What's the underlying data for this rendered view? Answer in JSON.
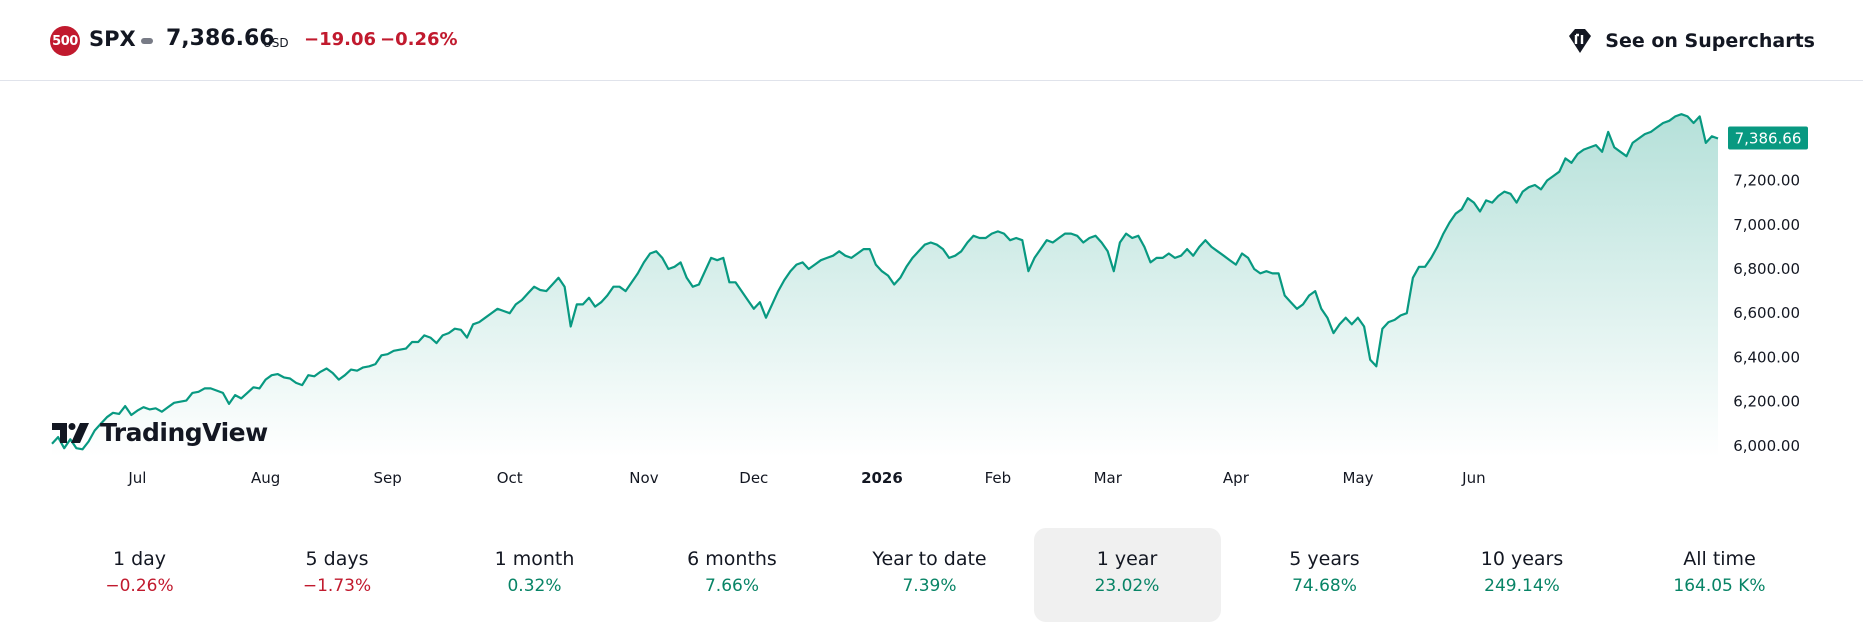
{
  "header": {
    "badge_text": "500",
    "ticker": "SPX",
    "price": "7,386.66",
    "currency": "USD",
    "change": "−19.06",
    "change_pct": "−0.26%",
    "supercharts_label": "See on Supercharts",
    "negative_color": "#c11a2e"
  },
  "logo": {
    "name": "TradingView"
  },
  "chart_data": {
    "type": "area",
    "title": "",
    "xlabel": "",
    "ylabel": "",
    "line_color": "#089981",
    "last_value_label": "7,386.66",
    "ylim": [
      5950,
      7650
    ],
    "y_ticks": [
      6000,
      6200,
      6400,
      6600,
      6800,
      7000,
      7200
    ],
    "y_tick_labels": [
      "6,000.00",
      "6,200.00",
      "6,400.00",
      "6,600.00",
      "6,800.00",
      "7,000.00",
      "7,200.00"
    ],
    "x_labels": [
      "Jul",
      "Aug",
      "Sep",
      "Oct",
      "Nov",
      "Dec",
      "2026",
      "Feb",
      "Mar",
      "Apr",
      "May",
      "Jun"
    ],
    "x_label_bold": [
      false,
      false,
      false,
      false,
      false,
      false,
      true,
      false,
      false,
      false,
      false,
      false
    ],
    "x_label_index": [
      14,
      35,
      55,
      75,
      97,
      115,
      136,
      155,
      173,
      194,
      214,
      233
    ],
    "series": [
      {
        "values": [
          6010,
          6040,
          5990,
          6030,
          5990,
          5985,
          6020,
          6070,
          6100,
          6130,
          6150,
          6145,
          6180,
          6140,
          6160,
          6175,
          6165,
          6170,
          6155,
          6175,
          6195,
          6200,
          6205,
          6240,
          6245,
          6260,
          6260,
          6250,
          6240,
          6190,
          6230,
          6215,
          6240,
          6265,
          6260,
          6300,
          6320,
          6325,
          6310,
          6305,
          6285,
          6275,
          6320,
          6315,
          6335,
          6350,
          6330,
          6300,
          6320,
          6345,
          6340,
          6355,
          6360,
          6370,
          6410,
          6415,
          6430,
          6435,
          6440,
          6470,
          6470,
          6500,
          6490,
          6465,
          6500,
          6510,
          6530,
          6525,
          6490,
          6550,
          6560,
          6580,
          6600,
          6620,
          6610,
          6600,
          6640,
          6660,
          6690,
          6720,
          6705,
          6700,
          6730,
          6760,
          6720,
          6540,
          6640,
          6640,
          6670,
          6630,
          6650,
          6680,
          6720,
          6720,
          6700,
          6740,
          6780,
          6830,
          6870,
          6880,
          6850,
          6800,
          6810,
          6830,
          6760,
          6720,
          6730,
          6790,
          6850,
          6840,
          6850,
          6740,
          6740,
          6700,
          6660,
          6620,
          6650,
          6580,
          6640,
          6700,
          6750,
          6790,
          6820,
          6830,
          6800,
          6820,
          6840,
          6850,
          6860,
          6880,
          6860,
          6850,
          6870,
          6890,
          6890,
          6820,
          6790,
          6770,
          6730,
          6760,
          6810,
          6850,
          6880,
          6910,
          6920,
          6910,
          6890,
          6850,
          6860,
          6880,
          6920,
          6950,
          6940,
          6940,
          6960,
          6970,
          6960,
          6930,
          6940,
          6930,
          6790,
          6850,
          6890,
          6930,
          6920,
          6940,
          6960,
          6960,
          6950,
          6920,
          6940,
          6950,
          6920,
          6880,
          6790,
          6920,
          6960,
          6940,
          6950,
          6900,
          6830,
          6850,
          6850,
          6870,
          6850,
          6860,
          6890,
          6860,
          6900,
          6930,
          6900,
          6880,
          6860,
          6840,
          6820,
          6870,
          6850,
          6800,
          6780,
          6790,
          6780,
          6780,
          6680,
          6650,
          6620,
          6640,
          6680,
          6700,
          6620,
          6580,
          6510,
          6550,
          6580,
          6550,
          6580,
          6540,
          6390,
          6360,
          6530,
          6560,
          6570,
          6590,
          6600,
          6760,
          6810,
          6810,
          6850,
          6900,
          6960,
          7010,
          7050,
          7070,
          7120,
          7100,
          7060,
          7110,
          7100,
          7130,
          7150,
          7140,
          7100,
          7150,
          7170,
          7180,
          7160,
          7200,
          7220,
          7240,
          7300,
          7280,
          7320,
          7340,
          7350,
          7360,
          7330,
          7420,
          7350,
          7330,
          7310,
          7370,
          7390,
          7410,
          7420,
          7440,
          7460,
          7470,
          7490,
          7500,
          7490,
          7460,
          7490,
          7370,
          7400,
          7390
        ]
      }
    ]
  },
  "periods": [
    {
      "label": "1 day",
      "value": "−0.26%",
      "trend": "neg",
      "active": false
    },
    {
      "label": "5 days",
      "value": "−1.73%",
      "trend": "neg",
      "active": false
    },
    {
      "label": "1 month",
      "value": "0.32%",
      "trend": "pos",
      "active": false
    },
    {
      "label": "6 months",
      "value": "7.66%",
      "trend": "pos",
      "active": false
    },
    {
      "label": "Year to date",
      "value": "7.39%",
      "trend": "pos",
      "active": false
    },
    {
      "label": "1 year",
      "value": "23.02%",
      "trend": "pos",
      "active": true
    },
    {
      "label": "5 years",
      "value": "74.68%",
      "trend": "pos",
      "active": false
    },
    {
      "label": "10 years",
      "value": "249.14%",
      "trend": "pos",
      "active": false
    },
    {
      "label": "All time",
      "value": "164.05 K%",
      "trend": "pos",
      "active": false
    }
  ]
}
